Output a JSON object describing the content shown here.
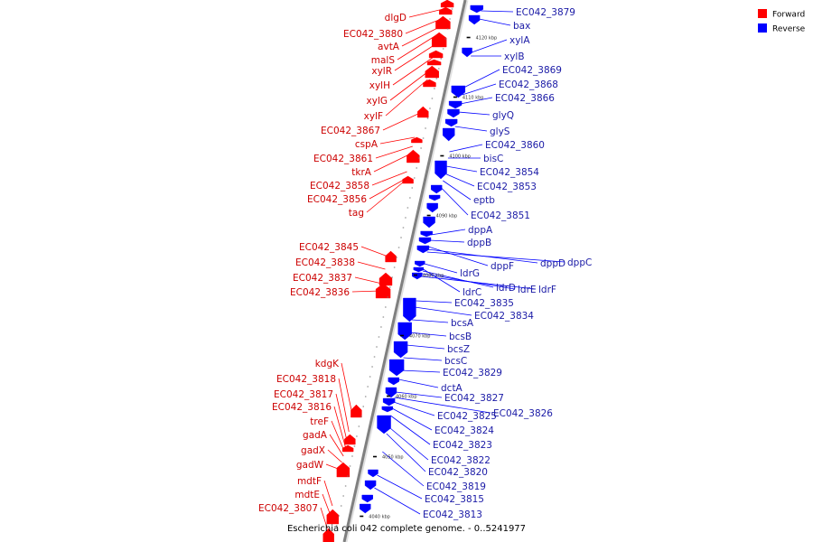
{
  "title": "Escherichia coli 042 complete genome. - 0..5241977",
  "colors": {
    "forward": "#ff0000",
    "reverse": "#0000ff",
    "forward_label": "#cc0000",
    "reverse_label": "#1a1aa6",
    "backbone": "#808080"
  },
  "legend": [
    {
      "key": "forward",
      "label": "Forward"
    },
    {
      "key": "reverse",
      "label": "Reverse"
    }
  ],
  "tick_labels": [
    "4120 kbp",
    "4110 kbp",
    "4100 kbp",
    "4090 kbp",
    "4080 kbp",
    "4070 kbp",
    "4060 kbp",
    "4050 kbp",
    "4040 kbp"
  ],
  "forward_genes": [
    "dlgD",
    "EC042_3880",
    "avtA",
    "malS",
    "xylR",
    "xylH",
    "xylG",
    "xylF",
    "EC042_3867",
    "cspA",
    "EC042_3861",
    "tkrA",
    "EC042_3858",
    "EC042_3856",
    "tag",
    "EC042_3845",
    "EC042_3838",
    "EC042_3837",
    "EC042_3836",
    "kdgK",
    "EC042_3818",
    "EC042_3817",
    "EC042_3816",
    "treF",
    "gadA",
    "gadX",
    "gadW",
    "mdtF",
    "mdtE",
    "EC042_3807"
  ],
  "reverse_genes": [
    "EC042_3879",
    "bax",
    "xylA",
    "xylB",
    "EC042_3869",
    "EC042_3868",
    "EC042_3866",
    "glyQ",
    "glyS",
    "EC042_3860",
    "bisC",
    "EC042_3854",
    "EC042_3853",
    "eptb",
    "EC042_3851",
    "dppA",
    "dppB",
    "dppF",
    "dppD",
    "dppC",
    "ldrG",
    "ldrC",
    "ldrD",
    "ldrE",
    "ldrF",
    "EC042_3835",
    "EC042_3834",
    "bcsA",
    "bcsB",
    "bcsZ",
    "bcsC",
    "EC042_3829",
    "dctA",
    "EC042_3827",
    "EC042_3826",
    "EC042_3825",
    "EC042_3824",
    "EC042_3823",
    "EC042_3822",
    "EC042_3820",
    "EC042_3819",
    "EC042_3815",
    "EC042_3813"
  ]
}
